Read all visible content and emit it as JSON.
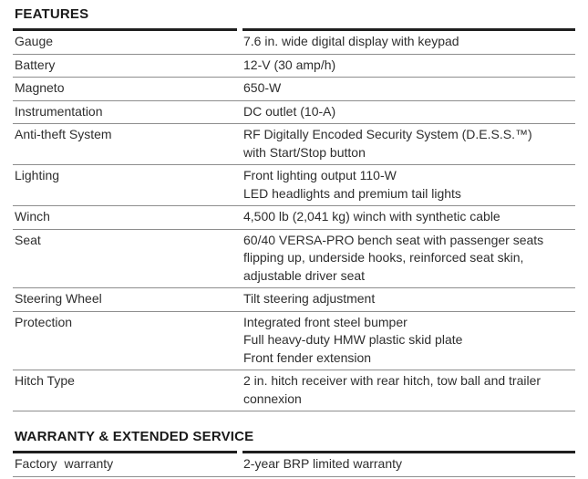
{
  "colors": {
    "page_background": "#ffffff",
    "heading_text": "#1a1a1a",
    "body_text": "#2e2e2e",
    "thick_rule": "#1f1f1f",
    "row_divider": "#8e8e8e"
  },
  "sections": [
    {
      "id": "features",
      "title": "FEATURES",
      "rows": [
        {
          "label": "Gauge",
          "value_lines": [
            "7.6 in. wide digital display with keypad"
          ]
        },
        {
          "label": "Battery",
          "value_lines": [
            "12-V (30 amp/h)"
          ]
        },
        {
          "label": "Magneto",
          "value_lines": [
            "650-W"
          ]
        },
        {
          "label": "Instrumentation",
          "value_lines": [
            "DC outlet (10-A)"
          ]
        },
        {
          "label": "Anti-theft System",
          "value_lines": [
            "RF Digitally Encoded Security System (D.E.S.S.™)",
            "with Start/Stop button"
          ]
        },
        {
          "label": "Lighting",
          "value_lines": [
            "Front lighting output 110-W",
            "LED headlights and premium tail lights"
          ]
        },
        {
          "label": "Winch",
          "value_lines": [
            "4,500 lb (2,041 kg) winch with synthetic cable"
          ]
        },
        {
          "label": "Seat",
          "value_lines": [
            "60/40 VERSA-PRO bench seat with passenger seats",
            "flipping up, underside hooks, reinforced seat skin,",
            "adjustable driver seat"
          ]
        },
        {
          "label": "Steering Wheel",
          "value_lines": [
            "Tilt steering adjustment"
          ]
        },
        {
          "label": "Protection",
          "value_lines": [
            "Integrated front steel bumper",
            "Full heavy-duty HMW plastic skid plate",
            "Front fender extension"
          ]
        },
        {
          "label": "Hitch Type",
          "value_lines": [
            "2 in. hitch receiver with rear hitch, tow ball and trailer",
            "connexion"
          ]
        }
      ]
    },
    {
      "id": "warranty-extended-service",
      "title": "WARRANTY & EXTENDED SERVICE",
      "rows": [
        {
          "label": "Factory  warranty",
          "value_lines": [
            "2-year BRP limited warranty"
          ]
        }
      ]
    }
  ]
}
